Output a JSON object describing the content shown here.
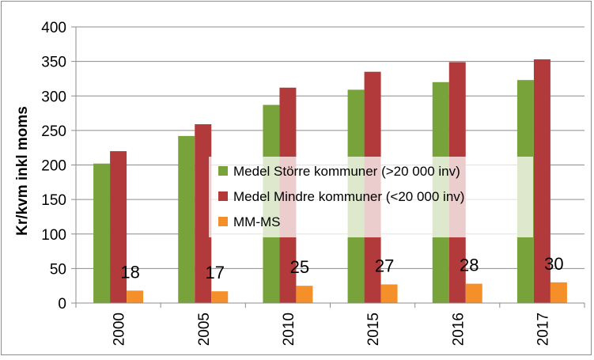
{
  "chart_data": {
    "type": "bar",
    "title": "",
    "xlabel": "",
    "ylabel": "Kr/kvm inkl moms",
    "categories": [
      "2000",
      "2005",
      "2010",
      "2015",
      "2016",
      "2017"
    ],
    "ylim": [
      0,
      400
    ],
    "yticks": [
      0,
      50,
      100,
      150,
      200,
      250,
      300,
      350,
      400
    ],
    "grid": true,
    "legend_position": "center-right",
    "series": [
      {
        "name": "Medel Större kommuner (>20 000 inv)",
        "color": "#77a33a",
        "values": [
          202,
          242,
          287,
          309,
          320,
          323
        ]
      },
      {
        "name": "Medel Mindre kommuner (<20 000 inv)",
        "color": "#b23a3a",
        "values": [
          220,
          259,
          312,
          335,
          349,
          353
        ]
      },
      {
        "name": "MM-MS",
        "color": "#f58f2a",
        "values": [
          18,
          17,
          25,
          27,
          28,
          30
        ]
      }
    ],
    "data_labels": [
      "18",
      "17",
      "25",
      "27",
      "28",
      "30"
    ]
  }
}
